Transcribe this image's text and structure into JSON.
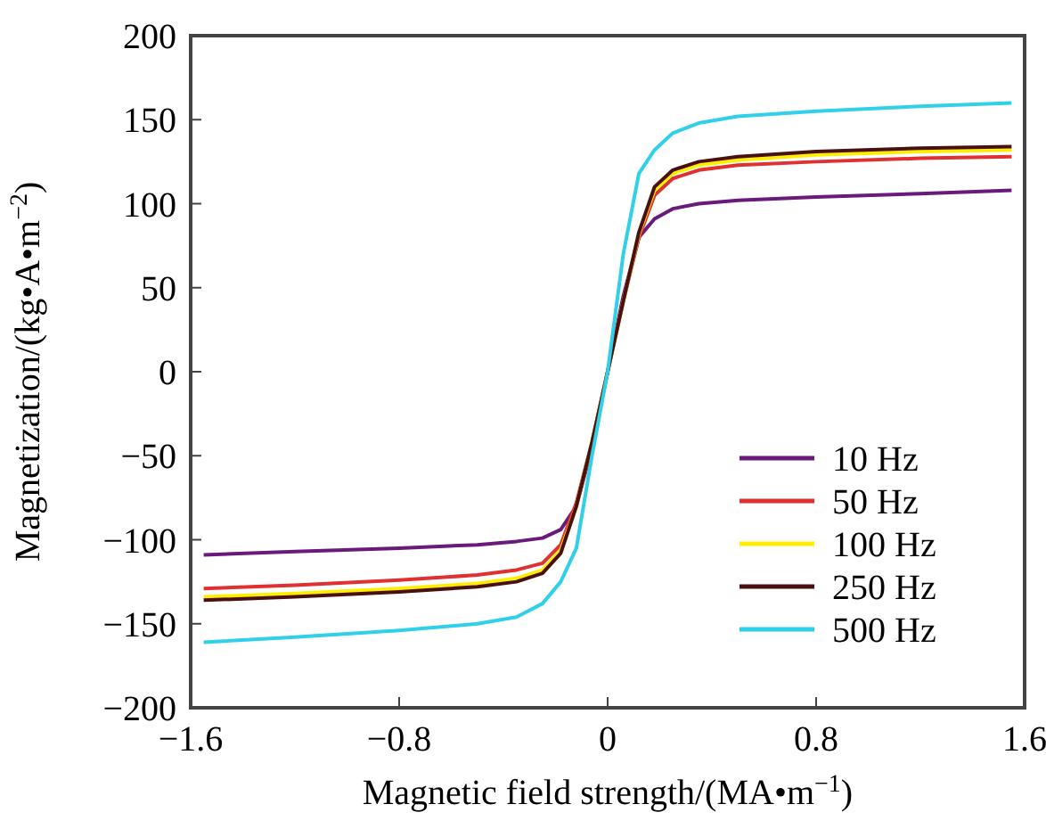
{
  "chart_data": {
    "type": "line",
    "xlabel": "Magnetic field strength/(MA•m$^{−1}$)",
    "ylabel": "Magnetization/(kg•A•m$^{−2}$)",
    "x": [
      -1.55,
      -1.2,
      -0.8,
      -0.5,
      -0.35,
      -0.25,
      -0.18,
      -0.12,
      -0.06,
      0,
      0.06,
      0.12,
      0.18,
      0.25,
      0.35,
      0.5,
      0.8,
      1.2,
      1.55
    ],
    "series": [
      {
        "name": "10 Hz",
        "color": "#6a1a7a",
        "values": [
          -109,
          -107,
          -105,
          -103,
          -101,
          -99,
          -94,
          -80,
          -45,
          0,
          45,
          80,
          91,
          97,
          100,
          102,
          104,
          106,
          108
        ]
      },
      {
        "name": "50 Hz",
        "color": "#e03030",
        "values": [
          -129,
          -127,
          -124,
          -121,
          -118,
          -114,
          -103,
          -78,
          -42,
          0,
          42,
          80,
          105,
          115,
          120,
          123,
          125,
          127,
          128
        ]
      },
      {
        "name": "100 Hz",
        "color": "#ffee00",
        "values": [
          -134,
          -132,
          -129,
          -126,
          -123,
          -118,
          -106,
          -80,
          -42,
          0,
          42,
          82,
          108,
          118,
          123,
          126,
          129,
          131,
          132
        ]
      },
      {
        "name": "250 Hz",
        "color": "#4a1010",
        "values": [
          -136,
          -134,
          -131,
          -128,
          -125,
          -120,
          -108,
          -80,
          -42,
          0,
          42,
          83,
          110,
          120,
          125,
          128,
          131,
          133,
          134
        ]
      },
      {
        "name": "500 Hz",
        "color": "#30d0e8",
        "values": [
          -161,
          -158,
          -154,
          -150,
          -146,
          -138,
          -125,
          -105,
          -50,
          0,
          70,
          118,
          132,
          142,
          148,
          152,
          155,
          158,
          160
        ]
      }
    ],
    "xlim": [
      -1.6,
      1.6
    ],
    "xticks": [
      {
        "value": -1.6,
        "label": "−1.6"
      },
      {
        "value": -0.8,
        "label": "−0.8"
      },
      0,
      0.8,
      1.6
    ],
    "ylim": [
      -200,
      200
    ],
    "yticks": [
      {
        "value": -200,
        "label": "−200"
      },
      {
        "value": -150,
        "label": "−150"
      },
      {
        "value": -100,
        "label": "−100"
      },
      {
        "value": -50,
        "label": "−50"
      },
      0,
      50,
      100,
      150,
      200
    ],
    "legend": "bottom right",
    "grid": false,
    "marker": "none",
    "line_style": "solid"
  }
}
